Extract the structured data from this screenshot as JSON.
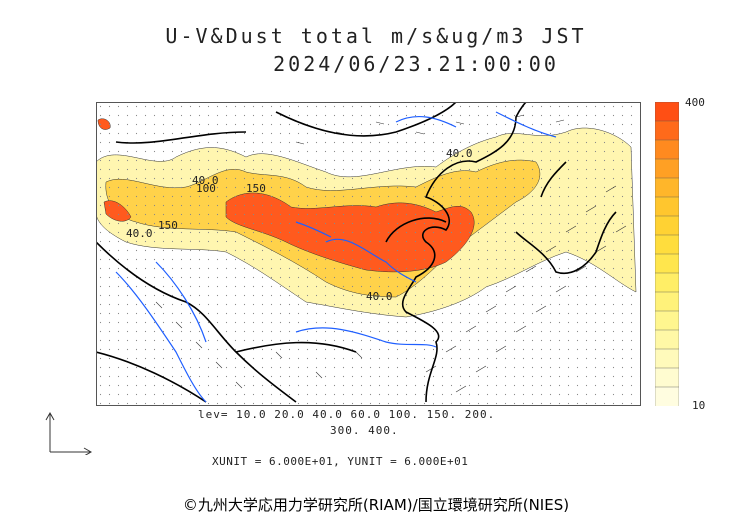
{
  "header": {
    "title": "U-V&Dust total m/s&ug/m3 JST",
    "datetime": "2024/06/23.21:00:00"
  },
  "map": {
    "contour_labels": [
      "40.0",
      "40.0",
      "150",
      "150",
      "100",
      "40.0",
      "40.0"
    ],
    "colors": {
      "land_border": "#000000",
      "rivers": "#1f5fff",
      "dust_high": "#ff5a1e",
      "dust_mid": "#ffd24a",
      "dust_low": "#fff6b0"
    }
  },
  "legend": {
    "max_label": "400",
    "min_label": "10",
    "colors": [
      "#ff4f14",
      "#ff6a1a",
      "#ff8a1f",
      "#ffa024",
      "#ffb62a",
      "#ffc62e",
      "#ffd233",
      "#ffdd3d",
      "#ffe64d",
      "#ffee66",
      "#fff27a",
      "#fff68f",
      "#fff8a6",
      "#fffabb",
      "#fffcd0",
      "#fffde0"
    ]
  },
  "levels": {
    "line1": "lev= 10.0 20.0 40.0 60.0 100. 150. 200.",
    "line2": "300. 400."
  },
  "units": {
    "text": "XUNIT = 6.000E+01, YUNIT = 6.000E+01"
  },
  "credit": {
    "text": "©九州大学応用力学研究所(RIAM)/国立環境研究所(NIES)"
  }
}
